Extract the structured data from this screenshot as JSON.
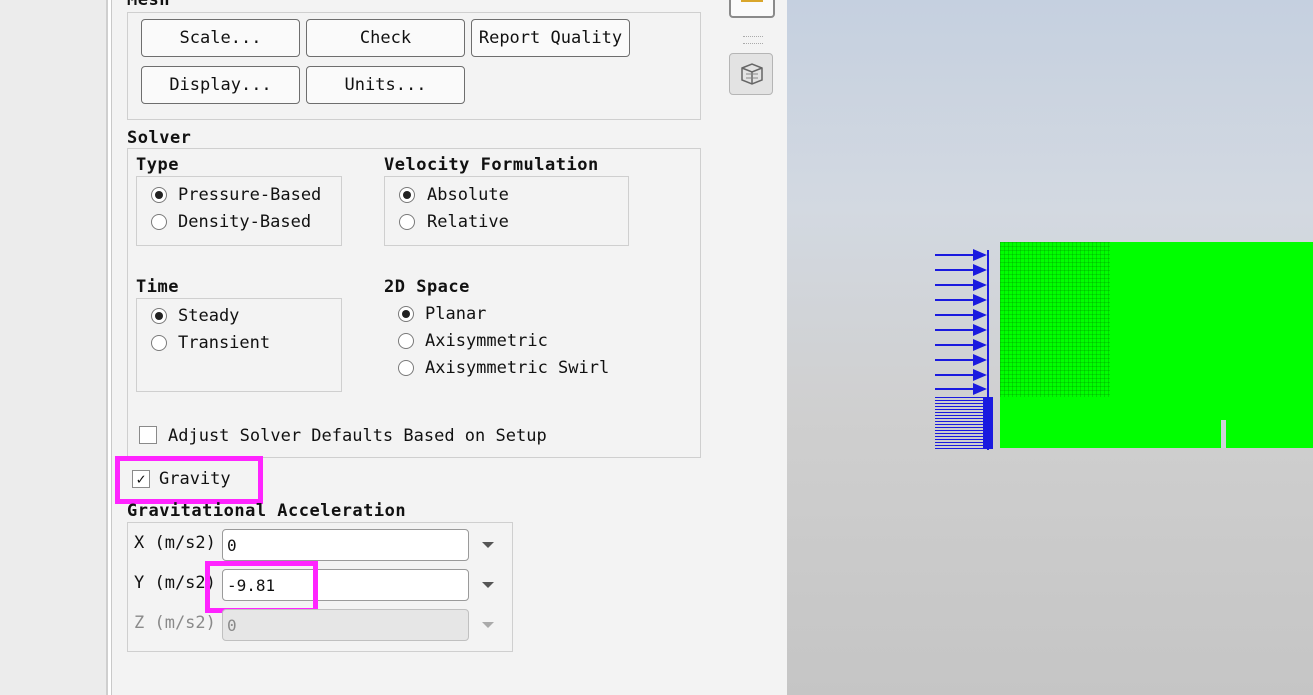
{
  "mesh": {
    "header": "Mesh",
    "buttons": {
      "scale": "Scale...",
      "check": "Check",
      "report_quality": "Report Quality",
      "display": "Display...",
      "units": "Units..."
    }
  },
  "solver": {
    "header": "Solver",
    "type": {
      "header": "Type",
      "options": [
        "Pressure-Based",
        "Density-Based"
      ],
      "selected": "Pressure-Based"
    },
    "velocity": {
      "header": "Velocity Formulation",
      "options": [
        "Absolute",
        "Relative"
      ],
      "selected": "Absolute"
    },
    "time": {
      "header": "Time",
      "options": [
        "Steady",
        "Transient"
      ],
      "selected": "Steady"
    },
    "space": {
      "header": "2D Space",
      "options": [
        "Planar",
        "Axisymmetric",
        "Axisymmetric Swirl"
      ],
      "selected": "Planar"
    },
    "adjust_defaults": {
      "label": "Adjust Solver Defaults Based on Setup",
      "checked": false
    }
  },
  "gravity": {
    "label": "Gravity",
    "checked": true,
    "checkmark": "✓"
  },
  "gravitational_acceleration": {
    "header": "Gravitational Acceleration",
    "x": {
      "label": "X (m/s2)",
      "value": "0"
    },
    "y": {
      "label": "Y (m/s2)",
      "value": "-9.81"
    },
    "z": {
      "label": "Z (m/s2)",
      "value": "0",
      "disabled": true
    }
  },
  "toolbar": {
    "icons": [
      "display-tool-icon",
      "mesh-view-icon"
    ]
  },
  "colors": {
    "highlight": "#ff24ff",
    "mesh": "#00ff00",
    "inlet_arrows": "#1a1adf"
  }
}
